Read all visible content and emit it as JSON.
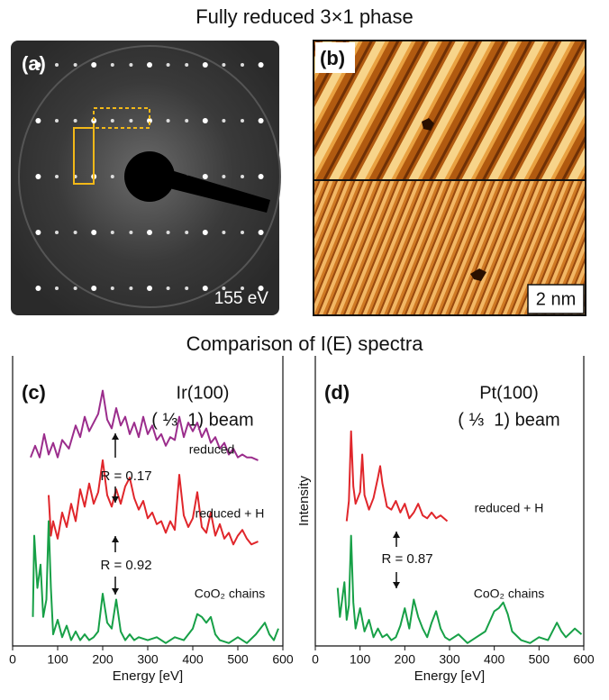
{
  "figure": {
    "title": "Fully reduced 3×1 phase",
    "panel_a_label": "(a)",
    "panel_a_energy": "155 eV",
    "panel_b_label": "(b)",
    "panel_b_scale": "2 nm",
    "subtitle": "Comparison of I(E) spectra"
  },
  "chart_data": [
    {
      "type": "line",
      "panel_label": "(c)",
      "title": "Ir(100)",
      "subtitle": "( ⅓  1) beam",
      "xlabel": "Energy [eV]",
      "xlim": [
        0,
        600
      ],
      "xticks": [
        0,
        100,
        200,
        300,
        400,
        500,
        600
      ],
      "ylim": [
        0,
        10
      ],
      "annotations": [
        "R = 0.17",
        "R = 0.92"
      ],
      "series": [
        {
          "name": "reduced",
          "color": "#9b2d8c",
          "x": [
            40,
            50,
            60,
            70,
            80,
            90,
            100,
            110,
            125,
            140,
            150,
            160,
            170,
            180,
            190,
            200,
            210,
            220,
            230,
            240,
            250,
            260,
            270,
            280,
            290,
            300,
            310,
            320,
            330,
            340,
            350,
            360,
            370,
            380,
            390,
            400,
            410,
            420,
            430,
            440,
            450,
            460,
            470,
            480,
            490,
            500,
            510,
            520,
            530,
            545
          ],
          "values": [
            6.5,
            6.9,
            6.5,
            7.3,
            6.6,
            7.0,
            6.5,
            7.1,
            6.8,
            7.6,
            7.2,
            7.9,
            7.4,
            7.7,
            8.0,
            8.8,
            7.8,
            7.5,
            8.2,
            7.6,
            7.9,
            7.3,
            7.7,
            7.2,
            7.9,
            7.3,
            7.6,
            7.1,
            7.3,
            6.9,
            7.2,
            7.1,
            7.9,
            7.2,
            7.7,
            7.4,
            7.7,
            7.2,
            7.5,
            7.0,
            7.2,
            6.8,
            7.0,
            6.6,
            6.8,
            6.5,
            6.6,
            6.5,
            6.5,
            6.4
          ]
        },
        {
          "name": "reduced + H",
          "color": "#e0262b",
          "x": [
            80,
            85,
            90,
            100,
            110,
            120,
            130,
            140,
            150,
            160,
            170,
            180,
            190,
            200,
            210,
            220,
            230,
            240,
            250,
            260,
            270,
            280,
            290,
            300,
            310,
            320,
            330,
            340,
            350,
            360,
            370,
            380,
            390,
            400,
            410,
            420,
            430,
            440,
            450,
            460,
            470,
            480,
            490,
            500,
            510,
            520,
            530,
            545
          ],
          "values": [
            5.2,
            3.8,
            4.3,
            3.7,
            4.6,
            4.1,
            4.9,
            4.3,
            5.4,
            4.8,
            5.6,
            4.9,
            5.3,
            6.4,
            5.2,
            4.8,
            5.4,
            4.9,
            5.5,
            5.8,
            5.1,
            4.7,
            5.0,
            4.4,
            4.6,
            4.2,
            4.3,
            3.9,
            4.3,
            4.0,
            5.9,
            4.5,
            4.1,
            4.4,
            5.3,
            4.1,
            3.9,
            4.6,
            3.8,
            4.2,
            3.7,
            3.9,
            3.5,
            3.8,
            4.0,
            3.7,
            3.5,
            3.6
          ]
        },
        {
          "name": "CoO₂ chains",
          "color": "#17a047",
          "x": [
            45,
            48,
            55,
            62,
            68,
            75,
            80,
            85,
            90,
            100,
            110,
            120,
            130,
            140,
            150,
            160,
            170,
            180,
            190,
            200,
            210,
            220,
            230,
            240,
            250,
            260,
            270,
            280,
            300,
            320,
            340,
            360,
            380,
            400,
            410,
            420,
            430,
            440,
            450,
            460,
            480,
            500,
            520,
            540,
            560,
            570,
            580,
            590
          ],
          "values": [
            1.0,
            3.8,
            2.0,
            2.8,
            1.0,
            1.6,
            4.3,
            2.0,
            0.4,
            0.9,
            0.3,
            0.7,
            0.2,
            0.5,
            0.2,
            0.4,
            0.2,
            0.3,
            0.5,
            1.8,
            0.8,
            0.6,
            1.6,
            0.5,
            0.2,
            0.4,
            0.2,
            0.3,
            0.2,
            0.3,
            0.1,
            0.3,
            0.2,
            0.6,
            1.1,
            1.0,
            0.8,
            1.0,
            0.4,
            0.2,
            0.1,
            0.3,
            0.1,
            0.4,
            0.8,
            0.4,
            0.2,
            0.6
          ]
        }
      ]
    },
    {
      "type": "line",
      "panel_label": "(d)",
      "title": "Pt(100)",
      "subtitle": "( ⅓  1) beam",
      "xlabel": "Energy [eV]",
      "ylabel": "Intensity",
      "xlim": [
        0,
        600
      ],
      "xticks": [
        0,
        100,
        200,
        300,
        400,
        500,
        600
      ],
      "ylim": [
        0,
        10
      ],
      "annotations": [
        "R = 0.87"
      ],
      "series": [
        {
          "name": "reduced + H",
          "color": "#e0262b",
          "x": [
            70,
            75,
            80,
            85,
            90,
            100,
            105,
            110,
            120,
            130,
            140,
            145,
            150,
            160,
            170,
            180,
            190,
            200,
            210,
            220,
            230,
            240,
            250,
            260,
            270,
            280,
            295
          ],
          "values": [
            4.3,
            5.0,
            7.4,
            5.5,
            4.9,
            5.3,
            6.6,
            5.2,
            4.7,
            5.1,
            5.8,
            6.2,
            5.6,
            4.8,
            4.7,
            5.0,
            4.6,
            4.9,
            4.4,
            4.6,
            4.9,
            4.5,
            4.4,
            4.6,
            4.4,
            4.5,
            4.3
          ]
        },
        {
          "name": "CoO₂ chains",
          "color": "#17a047",
          "x": [
            50,
            55,
            65,
            70,
            75,
            80,
            85,
            90,
            100,
            110,
            120,
            130,
            140,
            150,
            160,
            170,
            180,
            190,
            200,
            210,
            220,
            230,
            240,
            250,
            260,
            270,
            280,
            290,
            300,
            320,
            340,
            360,
            380,
            400,
            410,
            420,
            430,
            440,
            460,
            480,
            500,
            520,
            540,
            550,
            560,
            580,
            595
          ],
          "values": [
            2.0,
            1.0,
            2.2,
            0.9,
            1.4,
            3.8,
            1.5,
            0.6,
            1.3,
            0.5,
            0.9,
            0.3,
            0.6,
            0.3,
            0.4,
            0.2,
            0.3,
            0.7,
            1.3,
            0.6,
            1.6,
            1.0,
            0.6,
            0.3,
            0.8,
            1.2,
            0.6,
            0.3,
            0.2,
            0.4,
            0.1,
            0.3,
            0.5,
            1.2,
            1.3,
            1.5,
            1.1,
            0.5,
            0.2,
            0.1,
            0.3,
            0.2,
            0.8,
            0.5,
            0.3,
            0.6,
            0.4
          ]
        }
      ]
    }
  ]
}
